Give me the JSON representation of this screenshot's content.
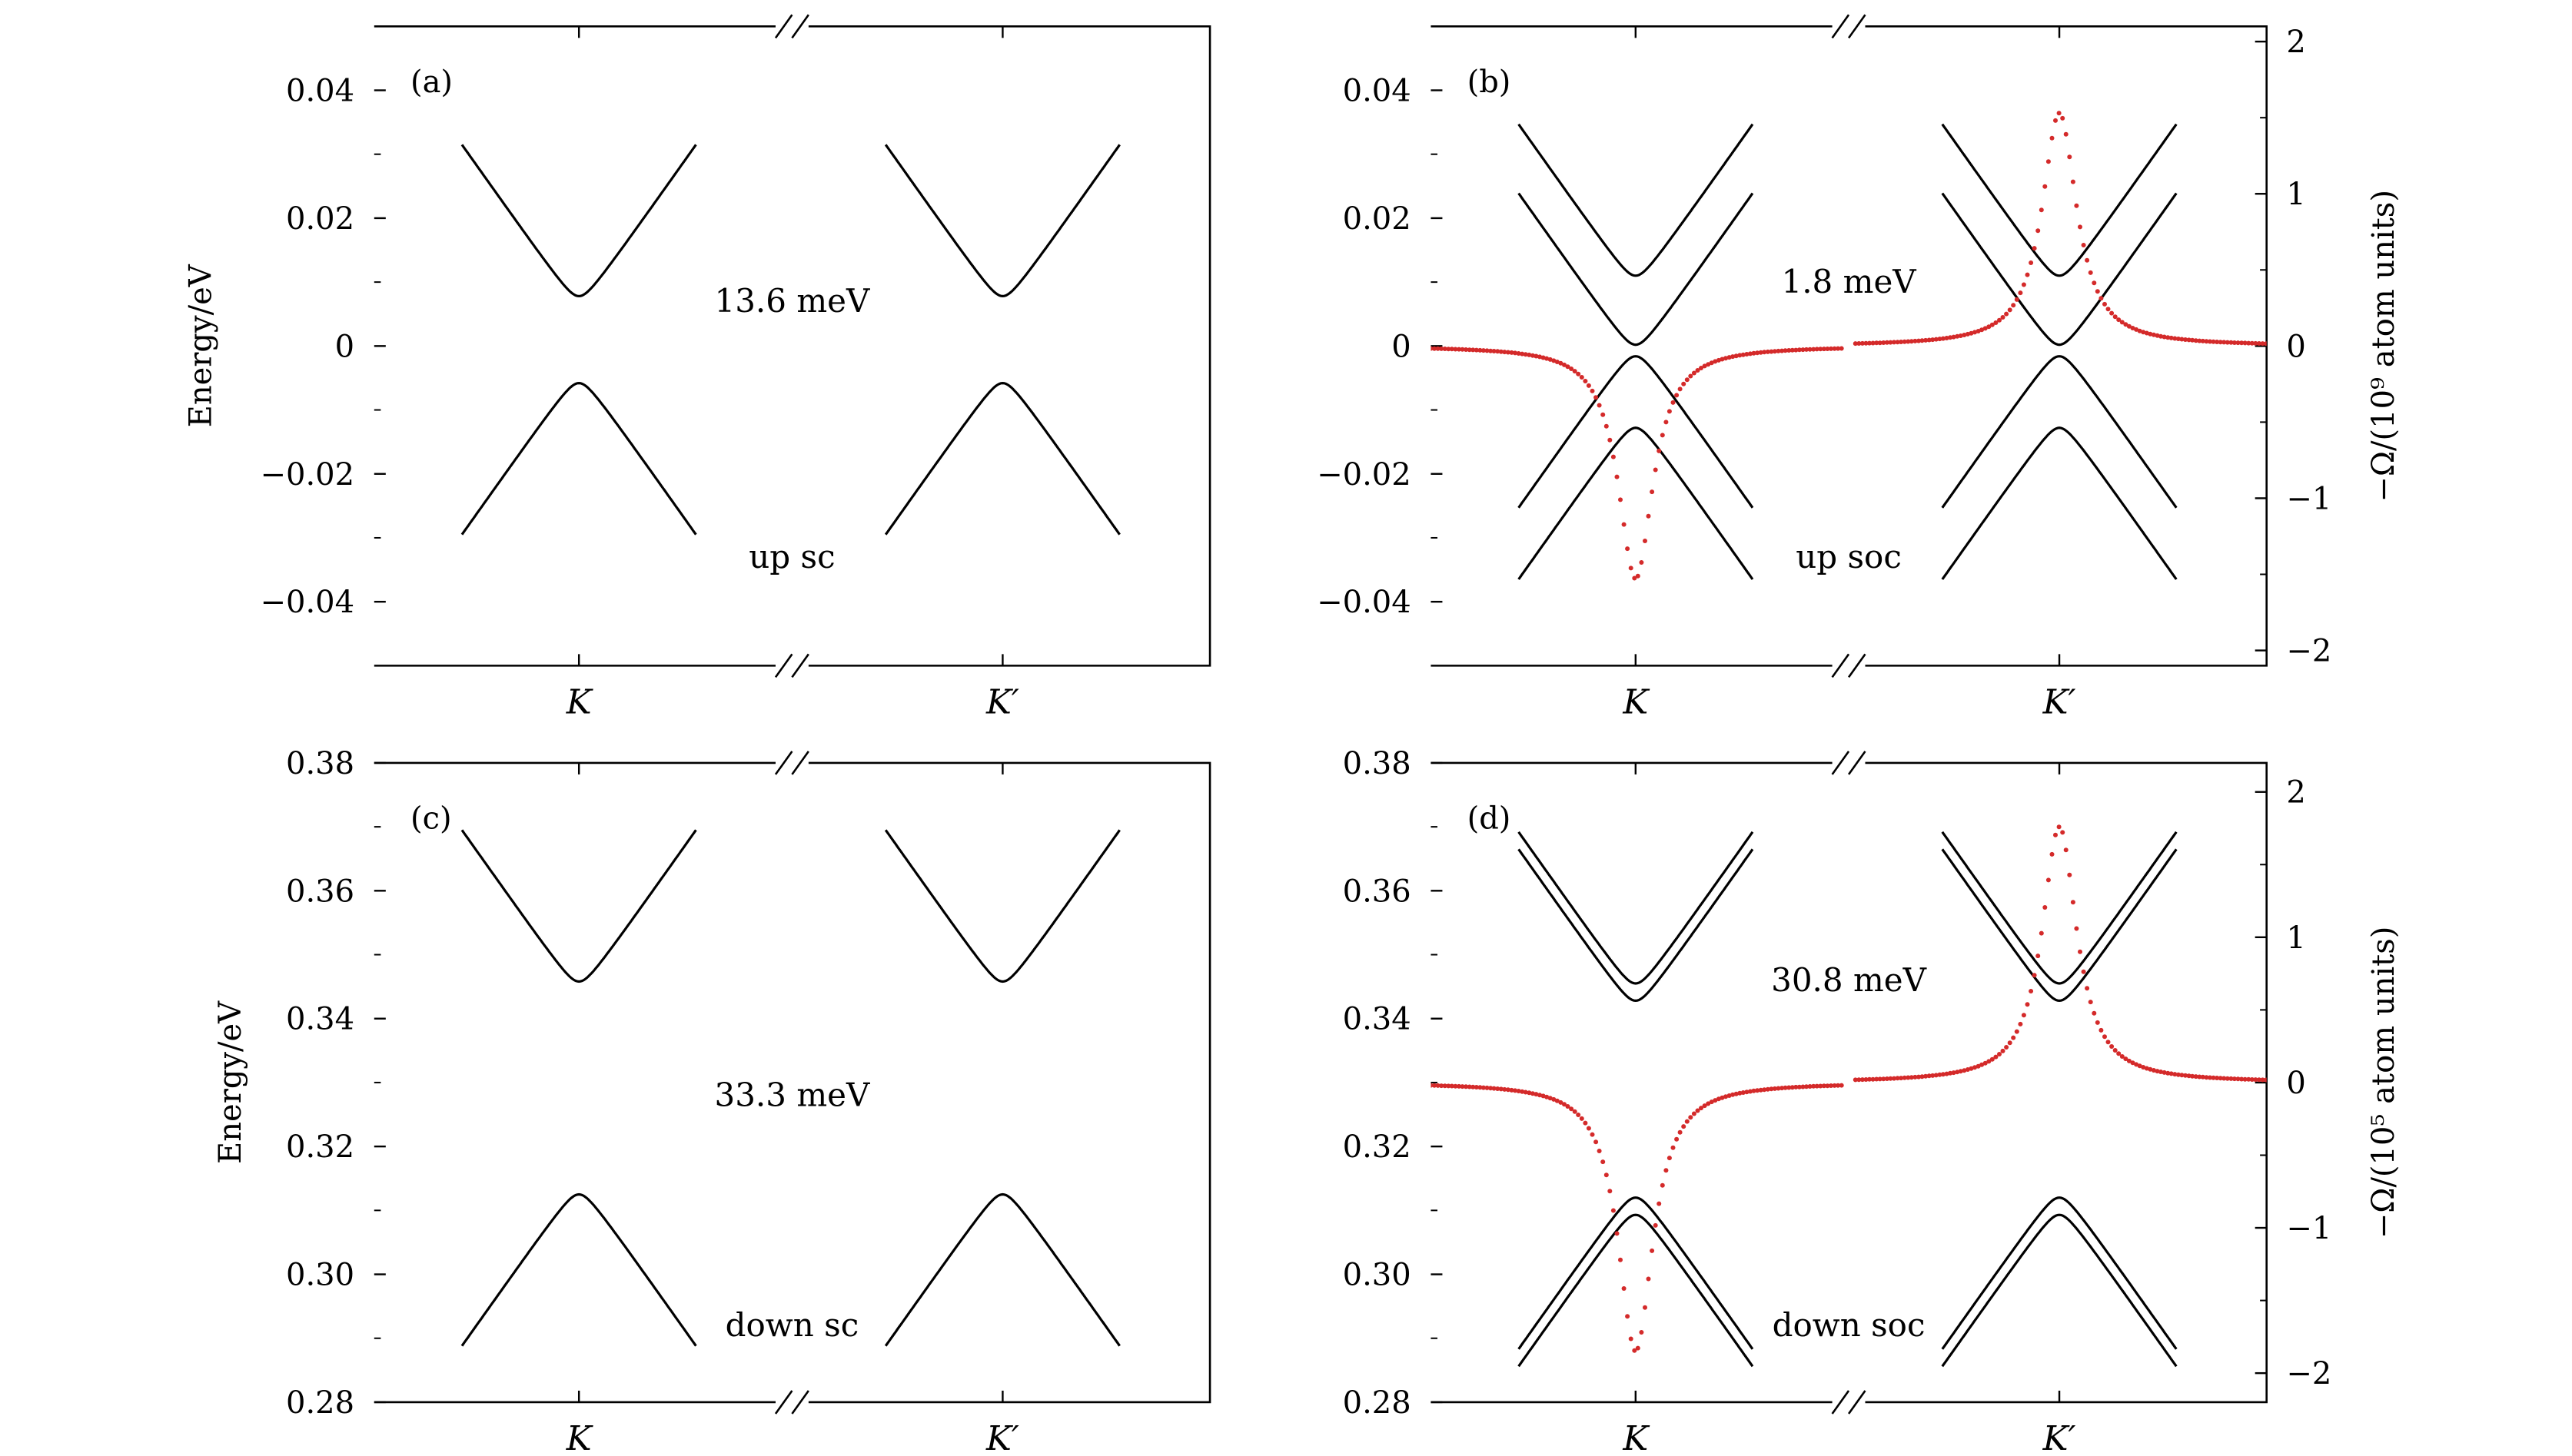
{
  "chart_data": [
    {
      "panel": "(a)",
      "type": "line",
      "ylabel": "Energy/eV",
      "ylim": [
        -0.05,
        0.05
      ],
      "yticks": [
        0.04,
        0.02,
        0,
        -0.02,
        -0.04
      ],
      "ytick_labels": [
        "0.04",
        "0.02",
        "0",
        "−0.02",
        "−0.04"
      ],
      "xtick_labels": [
        "K",
        "K′"
      ],
      "axis_break": "//",
      "annotations": [
        "13.6 meV",
        "up sc"
      ],
      "series": [
        {
          "type": "conduction",
          "valley": "K",
          "min": 0.0078
        },
        {
          "type": "valence",
          "valley": "K",
          "max": -0.0058
        },
        {
          "type": "conduction",
          "valley": "K′",
          "min": 0.0078
        },
        {
          "type": "valence",
          "valley": "K′",
          "max": -0.0058
        }
      ]
    },
    {
      "panel": "(b)",
      "type": "line",
      "ylim": [
        -0.05,
        0.05
      ],
      "yticks": [
        0.04,
        0.02,
        0,
        -0.02,
        -0.04
      ],
      "ytick_labels": [
        "0.04",
        "0.02",
        "0",
        "−0.02",
        "−0.04"
      ],
      "ylabel_right": "−Ω/(10⁹ atom units)",
      "ylim_right": [
        -2.1,
        2.1
      ],
      "yticks_right": [
        2,
        1,
        0,
        -1,
        -2
      ],
      "ytick_labels_right": [
        "2",
        "1",
        "0",
        "−1",
        "−2"
      ],
      "xtick_labels": [
        "K",
        "K′"
      ],
      "axis_break": "//",
      "annotations": [
        "1.8 meV",
        "up soc"
      ],
      "series": [
        {
          "type": "conduction",
          "valley": "K",
          "min": 0.011
        },
        {
          "type": "conduction",
          "valley": "K",
          "min": 0.0002
        },
        {
          "type": "valence",
          "valley": "K",
          "max": -0.0016
        },
        {
          "type": "valence",
          "valley": "K",
          "max": -0.0128
        },
        {
          "type": "conduction",
          "valley": "K′",
          "min": 0.011
        },
        {
          "type": "conduction",
          "valley": "K′",
          "min": 0.0002
        },
        {
          "type": "valence",
          "valley": "K′",
          "max": -0.0016
        },
        {
          "type": "valence",
          "valley": "K′",
          "max": -0.0128
        }
      ],
      "berry_curvature": {
        "color": "#d42a2a",
        "peak_K": -1.53,
        "peak_K_prime": 1.53
      }
    },
    {
      "panel": "(c)",
      "type": "line",
      "ylabel": "Energy/eV",
      "ylim": [
        0.28,
        0.38
      ],
      "yticks": [
        0.38,
        0.36,
        0.34,
        0.32,
        0.3,
        0.28
      ],
      "ytick_labels": [
        "0.38",
        "0.36",
        "0.34",
        "0.32",
        "0.30",
        "0.28"
      ],
      "xtick_labels": [
        "K",
        "K′"
      ],
      "axis_break": "//",
      "annotations": [
        "33.3 meV",
        "down sc"
      ],
      "series": [
        {
          "type": "conduction",
          "valley": "K",
          "min": 0.3458
        },
        {
          "type": "valence",
          "valley": "K",
          "max": 0.3125
        },
        {
          "type": "conduction",
          "valley": "K′",
          "min": 0.3458
        },
        {
          "type": "valence",
          "valley": "K′",
          "max": 0.3125
        }
      ]
    },
    {
      "panel": "(d)",
      "type": "line",
      "ylim": [
        0.28,
        0.38
      ],
      "yticks": [
        0.38,
        0.36,
        0.34,
        0.32,
        0.3,
        0.28
      ],
      "ytick_labels": [
        "0.38",
        "0.36",
        "0.34",
        "0.32",
        "0.30",
        "0.28"
      ],
      "ylabel_right": "−Ω/(10⁵ atom units)",
      "ylim_right": [
        -2.2,
        2.2
      ],
      "yticks_right": [
        2,
        1,
        0,
        -1,
        -2
      ],
      "ytick_labels_right": [
        "2",
        "1",
        "0",
        "−1",
        "−2"
      ],
      "xtick_labels": [
        "K",
        "K′"
      ],
      "axis_break": "//",
      "annotations": [
        "30.8 meV",
        "down soc"
      ],
      "series": [
        {
          "type": "conduction",
          "valley": "K",
          "min": 0.3455
        },
        {
          "type": "conduction",
          "valley": "K",
          "min": 0.3428
        },
        {
          "type": "valence",
          "valley": "K",
          "max": 0.312
        },
        {
          "type": "valence",
          "valley": "K",
          "max": 0.3093
        },
        {
          "type": "conduction",
          "valley": "K′",
          "min": 0.3455
        },
        {
          "type": "conduction",
          "valley": "K′",
          "min": 0.3428
        },
        {
          "type": "valence",
          "valley": "K′",
          "max": 0.312
        },
        {
          "type": "valence",
          "valley": "K′",
          "max": 0.3093
        }
      ],
      "berry_curvature": {
        "color": "#d42a2a",
        "peak_K": -1.85,
        "peak_K_prime": 1.76
      }
    }
  ]
}
